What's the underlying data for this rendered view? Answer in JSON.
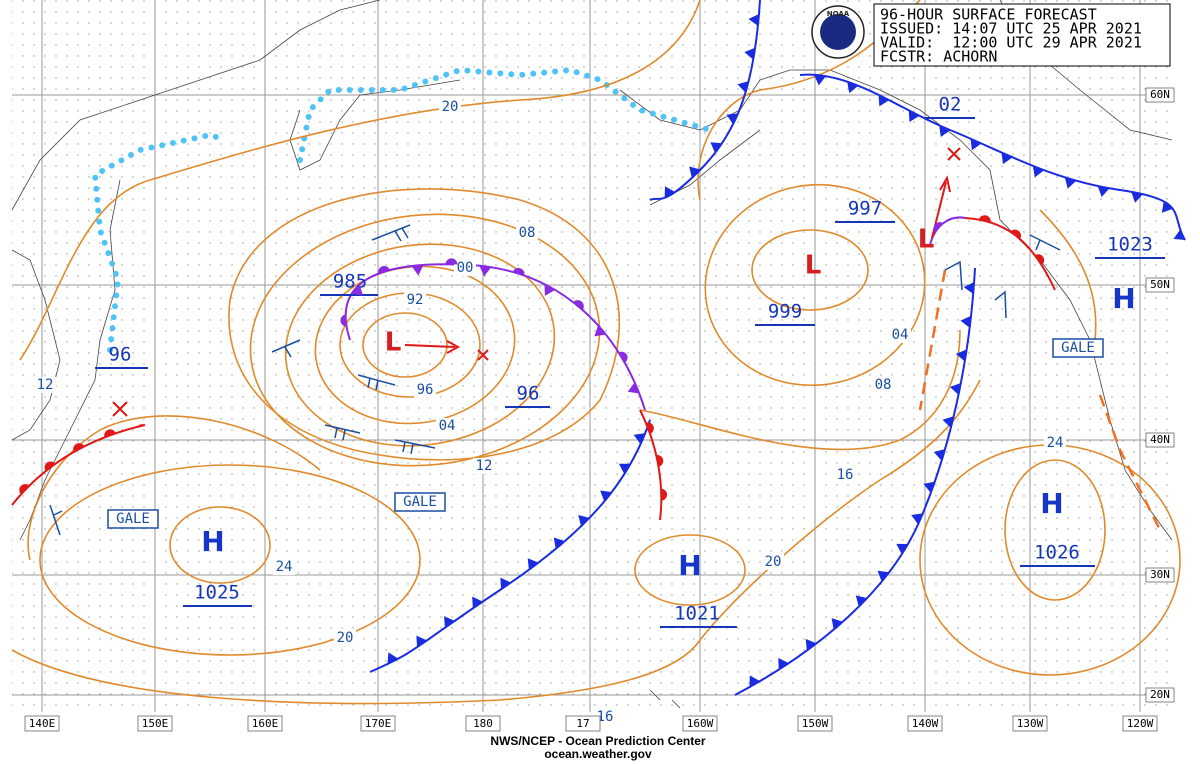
{
  "header": {
    "title": "96-HOUR SURFACE FORECAST",
    "issued": "ISSUED: 14:07 UTC 25 APR 2021",
    "valid": "VALID:  12:00 UTC 29 APR 2021",
    "forecaster": "FCSTR: ACHORN"
  },
  "logo": "NOAA",
  "longitude_labels": [
    "140E",
    "150E",
    "160E",
    "170E",
    "180",
    "17",
    "160W",
    "150W",
    "140W",
    "130W",
    "120W"
  ],
  "latitude_labels": [
    "60N",
    "50N",
    "40N",
    "30N",
    "20N"
  ],
  "pressure_systems": [
    {
      "symbol": "H",
      "pressure": "1025"
    },
    {
      "symbol": "H",
      "pressure": "1021"
    },
    {
      "symbol": "H",
      "pressure": "1026"
    },
    {
      "symbol": "H"
    },
    {
      "symbol": "L",
      "pressure": "985"
    },
    {
      "symbol": "L",
      "pressure": "999"
    },
    {
      "symbol": "L",
      "pressure": "997"
    }
  ],
  "front_pressures": [
    "96",
    "96",
    "02",
    "1023"
  ],
  "isobar_labels": [
    "20",
    "08",
    "00",
    "92",
    "96",
    "04",
    "12",
    "16",
    "04",
    "08",
    "24",
    "24",
    "20",
    "20",
    "16",
    "12"
  ],
  "warnings": [
    "GALE",
    "GALE",
    "GALE"
  ],
  "footer": {
    "agency": "NWS/NCEP - Ocean Prediction Center",
    "url": "ocean.weather.gov"
  }
}
